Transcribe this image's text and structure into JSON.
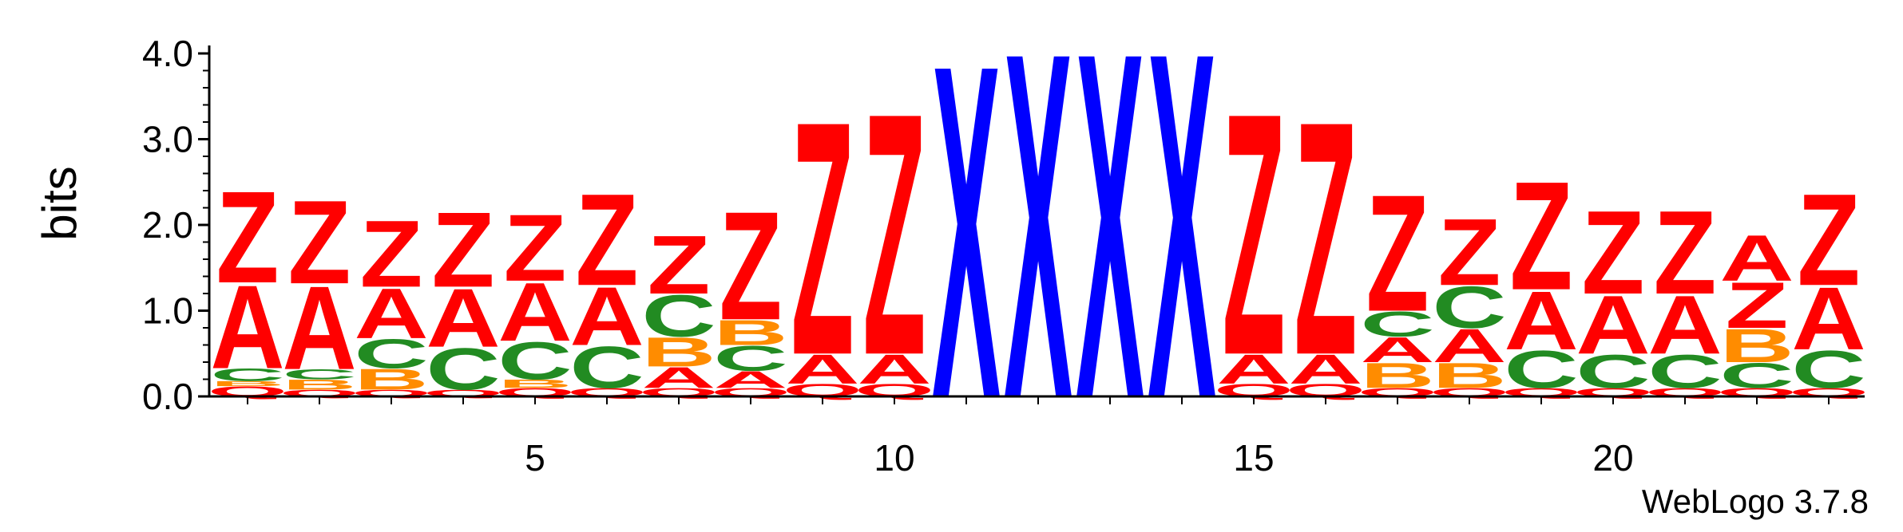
{
  "chart_data": {
    "type": "sequence-logo",
    "ylabel": "bits",
    "ylim": [
      0,
      4
    ],
    "yticks": [
      "0.0",
      "1.0",
      "2.0",
      "3.0",
      "4.0"
    ],
    "xticks": [
      "5",
      "10",
      "15",
      "20"
    ],
    "xtick_positions": [
      5,
      10,
      15,
      20
    ],
    "credit": "WebLogo 3.7.8",
    "colors": {
      "Z": "#ff0000",
      "A": "#ff0000",
      "Q": "#ff0000",
      "X": "#0000ff",
      "C": "#228b22",
      "B": "#ff8c00"
    },
    "positions": [
      [
        {
          "l": "Q",
          "h": 0.12
        },
        {
          "l": "B",
          "h": 0.06
        },
        {
          "l": "C",
          "h": 0.15
        },
        {
          "l": "A",
          "h": 1.0
        },
        {
          "l": "Z",
          "h": 1.1
        }
      ],
      [
        {
          "l": "Q",
          "h": 0.08
        },
        {
          "l": "B",
          "h": 0.12
        },
        {
          "l": "C",
          "h": 0.12
        },
        {
          "l": "A",
          "h": 1.0
        },
        {
          "l": "Z",
          "h": 1.0
        }
      ],
      [
        {
          "l": "Q",
          "h": 0.08
        },
        {
          "l": "B",
          "h": 0.25
        },
        {
          "l": "C",
          "h": 0.35
        },
        {
          "l": "A",
          "h": 0.6
        },
        {
          "l": "Z",
          "h": 0.8
        }
      ],
      [
        {
          "l": "Q",
          "h": 0.08
        },
        {
          "l": "C",
          "h": 0.5
        },
        {
          "l": "A",
          "h": 0.7
        },
        {
          "l": "Z",
          "h": 0.9
        }
      ],
      [
        {
          "l": "Q",
          "h": 0.1
        },
        {
          "l": "B",
          "h": 0.1
        },
        {
          "l": "C",
          "h": 0.45
        },
        {
          "l": "A",
          "h": 0.7
        },
        {
          "l": "Z",
          "h": 0.8
        }
      ],
      [
        {
          "l": "Q",
          "h": 0.1
        },
        {
          "l": "C",
          "h": 0.5
        },
        {
          "l": "A",
          "h": 0.7
        },
        {
          "l": "Z",
          "h": 1.1
        }
      ],
      [
        {
          "l": "Q",
          "h": 0.1
        },
        {
          "l": "A",
          "h": 0.25
        },
        {
          "l": "B",
          "h": 0.35
        },
        {
          "l": "C",
          "h": 0.5
        },
        {
          "l": "Z",
          "h": 0.7
        }
      ],
      [
        {
          "l": "Q",
          "h": 0.1
        },
        {
          "l": "A",
          "h": 0.2
        },
        {
          "l": "C",
          "h": 0.3
        },
        {
          "l": "B",
          "h": 0.3
        },
        {
          "l": "Z",
          "h": 1.3
        }
      ],
      [
        {
          "l": "Q",
          "h": 0.15
        },
        {
          "l": "A",
          "h": 0.35
        },
        {
          "l": "Z",
          "h": 2.8
        }
      ],
      [
        {
          "l": "Q",
          "h": 0.15
        },
        {
          "l": "A",
          "h": 0.35
        },
        {
          "l": "Z",
          "h": 2.9
        }
      ],
      [
        {
          "l": "X",
          "h": 4.0
        }
      ],
      [
        {
          "l": "X",
          "h": 4.15
        }
      ],
      [
        {
          "l": "X",
          "h": 4.15
        }
      ],
      [
        {
          "l": "X",
          "h": 4.15
        }
      ],
      [
        {
          "l": "Q",
          "h": 0.15
        },
        {
          "l": "A",
          "h": 0.35
        },
        {
          "l": "Z",
          "h": 2.9
        }
      ],
      [
        {
          "l": "Q",
          "h": 0.15
        },
        {
          "l": "A",
          "h": 0.35
        },
        {
          "l": "Z",
          "h": 2.8
        }
      ],
      [
        {
          "l": "Q",
          "h": 0.1
        },
        {
          "l": "B",
          "h": 0.3
        },
        {
          "l": "A",
          "h": 0.3
        },
        {
          "l": "C",
          "h": 0.3
        },
        {
          "l": "Z",
          "h": 1.4
        }
      ],
      [
        {
          "l": "Q",
          "h": 0.1
        },
        {
          "l": "B",
          "h": 0.3
        },
        {
          "l": "A",
          "h": 0.4
        },
        {
          "l": "C",
          "h": 0.5
        },
        {
          "l": "Z",
          "h": 0.8
        }
      ],
      [
        {
          "l": "Q",
          "h": 0.1
        },
        {
          "l": "C",
          "h": 0.45
        },
        {
          "l": "A",
          "h": 0.7
        },
        {
          "l": "Z",
          "h": 1.3
        }
      ],
      [
        {
          "l": "Q",
          "h": 0.1
        },
        {
          "l": "C",
          "h": 0.4
        },
        {
          "l": "A",
          "h": 0.7
        },
        {
          "l": "Z",
          "h": 1.0
        }
      ],
      [
        {
          "l": "Q",
          "h": 0.1
        },
        {
          "l": "C",
          "h": 0.4
        },
        {
          "l": "A",
          "h": 0.7
        },
        {
          "l": "Z",
          "h": 1.0
        }
      ],
      [
        {
          "l": "Q",
          "h": 0.1
        },
        {
          "l": "C",
          "h": 0.3
        },
        {
          "l": "B",
          "h": 0.4
        },
        {
          "l": "Z",
          "h": 0.55
        },
        {
          "l": "A",
          "h": 0.55
        }
      ],
      [
        {
          "l": "Q",
          "h": 0.1
        },
        {
          "l": "C",
          "h": 0.45
        },
        {
          "l": "A",
          "h": 0.75
        },
        {
          "l": "Z",
          "h": 1.1
        }
      ]
    ]
  }
}
